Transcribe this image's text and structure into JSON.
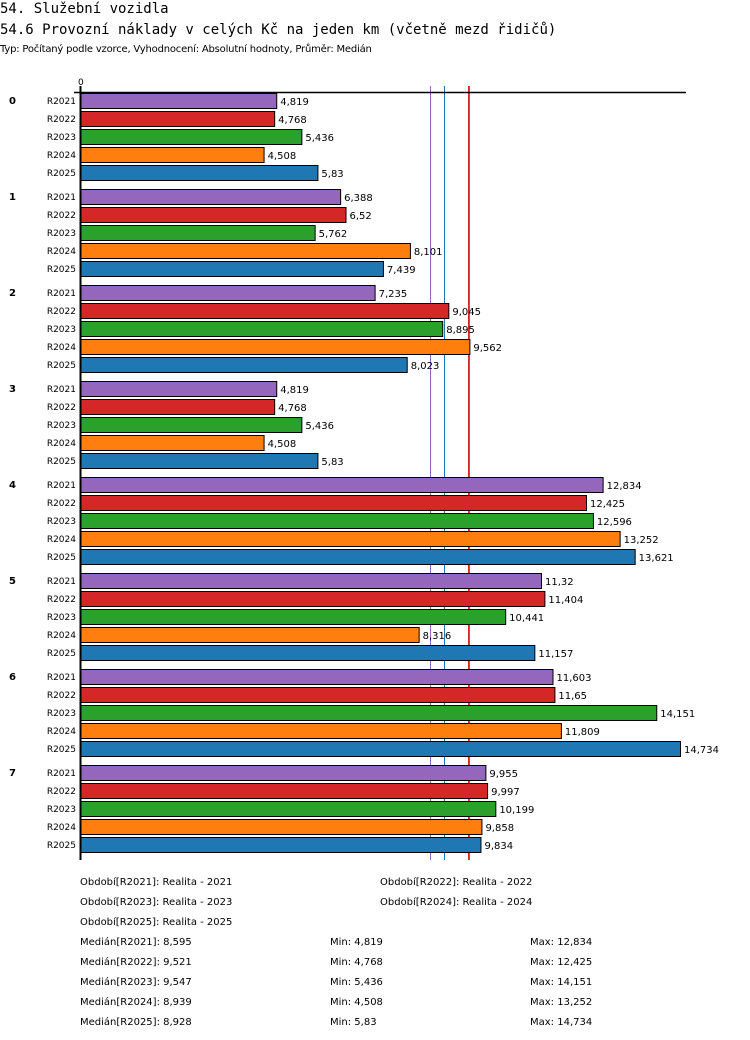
{
  "header": {
    "title": "54. Služební vozidla",
    "subtitle": "54.6 Provozní náklady v celých Kč na jeden km (včetně mezd řidičů)",
    "meta": "Typ: Počítaný podle vzorce, Vyhodnocení: Absolutní hodnoty, Průměr: Medián"
  },
  "chart_data": {
    "type": "bar",
    "orientation": "horizontal",
    "title": "54.6 Provozní náklady v celých Kč na jeden km (včetně mezd řidičů)",
    "xlabel": "",
    "ylabel": "",
    "x_tick_labels": [
      "0"
    ],
    "xlim": [
      0,
      14.734
    ],
    "grid": false,
    "legend": "bottom",
    "categories": [
      "0",
      "1",
      "2",
      "3",
      "4",
      "5",
      "6",
      "7"
    ],
    "series": [
      {
        "name": "R2021",
        "color": "#9467bd",
        "values": [
          4.819,
          6.388,
          7.235,
          4.819,
          12.834,
          11.32,
          11.603,
          9.955
        ],
        "labels": [
          "4,819",
          "6,388",
          "7,235",
          "4,819",
          "12,834",
          "11,32",
          "11,603",
          "9,955"
        ]
      },
      {
        "name": "R2022",
        "color": "#d62728",
        "values": [
          4.768,
          6.52,
          9.045,
          4.768,
          12.425,
          11.404,
          11.65,
          9.997
        ],
        "labels": [
          "4,768",
          "6,52",
          "9,045",
          "4,768",
          "12,425",
          "11,404",
          "11,65",
          "9,997"
        ]
      },
      {
        "name": "R2023",
        "color": "#2ca02c",
        "values": [
          5.436,
          5.762,
          8.895,
          5.436,
          12.596,
          10.441,
          14.151,
          10.199
        ],
        "labels": [
          "5,436",
          "5,762",
          "8,895",
          "5,436",
          "12,596",
          "10,441",
          "14,151",
          "10,199"
        ]
      },
      {
        "name": "R2024",
        "color": "#ff7f0e",
        "values": [
          4.508,
          8.101,
          9.562,
          4.508,
          13.252,
          8.316,
          11.809,
          9.858
        ],
        "labels": [
          "4,508",
          "8,101",
          "9,562",
          "4,508",
          "13,252",
          "8,316",
          "11,809",
          "9,858"
        ]
      },
      {
        "name": "R2025",
        "color": "#1f77b4",
        "values": [
          5.83,
          7.439,
          8.023,
          5.83,
          13.621,
          11.157,
          14.734,
          9.834
        ],
        "labels": [
          "5,83",
          "7,439",
          "8,023",
          "5,83",
          "13,621",
          "11,157",
          "14,734",
          "9,834"
        ]
      }
    ],
    "median_lines": [
      {
        "series": "R2021",
        "value": 8.595
      },
      {
        "series": "R2022",
        "value": 9.521
      },
      {
        "series": "R2023",
        "value": 9.547
      },
      {
        "series": "R2024",
        "value": 8.939
      },
      {
        "series": "R2025",
        "value": 8.928
      }
    ]
  },
  "legend": {
    "periods": [
      {
        "text": "Období[R2021]: Realita - 2021"
      },
      {
        "text": "Období[R2022]: Realita - 2022"
      },
      {
        "text": "Období[R2023]: Realita - 2023"
      },
      {
        "text": "Období[R2024]: Realita - 2024"
      },
      {
        "text": "Období[R2025]: Realita - 2025"
      }
    ],
    "stats": [
      {
        "median": "Medián[R2021]: 8,595",
        "min": "Min: 4,819",
        "max": "Max: 12,834"
      },
      {
        "median": "Medián[R2022]: 9,521",
        "min": "Min: 4,768",
        "max": "Max: 12,425"
      },
      {
        "median": "Medián[R2023]: 9,547",
        "min": "Min: 5,436",
        "max": "Max: 14,151"
      },
      {
        "median": "Medián[R2024]: 8,939",
        "min": "Min: 4,508",
        "max": "Max: 13,252"
      },
      {
        "median": "Medián[R2025]: 8,928",
        "min": "Min: 5,83",
        "max": "Max: 14,734"
      }
    ]
  }
}
